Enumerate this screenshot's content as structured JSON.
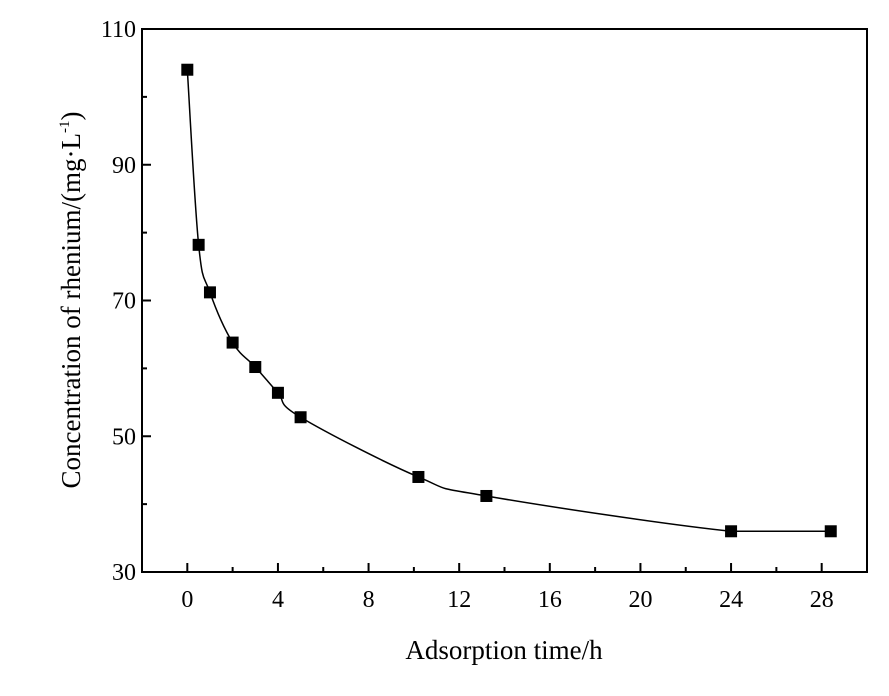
{
  "chart_data": {
    "type": "line",
    "title": "",
    "xlabel": "Adsorption time/h",
    "ylabel": {
      "main": "Concentration of rhenium/(mg·L",
      "superscript": "-1",
      "closing": ")"
    },
    "xlim": [
      -2,
      30
    ],
    "ylim": [
      30,
      110
    ],
    "x_ticks": [
      0,
      4,
      8,
      12,
      16,
      20,
      24,
      28
    ],
    "x_tick_labels": [
      "0",
      "4",
      "8",
      "12",
      "16",
      "20",
      "24",
      "28"
    ],
    "y_ticks": [
      30,
      50,
      70,
      90,
      110
    ],
    "y_tick_labels": [
      "30",
      "50",
      "70",
      "90",
      "110"
    ],
    "grid": false,
    "legend": "none",
    "marker": "square",
    "series": [
      {
        "color": "#000000",
        "x": [
          0,
          0.5,
          1,
          2,
          3,
          4,
          5,
          10.2,
          13.2,
          24,
          28.4
        ],
        "y": [
          104,
          78.2,
          71.2,
          63.8,
          60.2,
          56.4,
          52.8,
          44,
          41.2,
          36,
          36
        ]
      }
    ]
  }
}
